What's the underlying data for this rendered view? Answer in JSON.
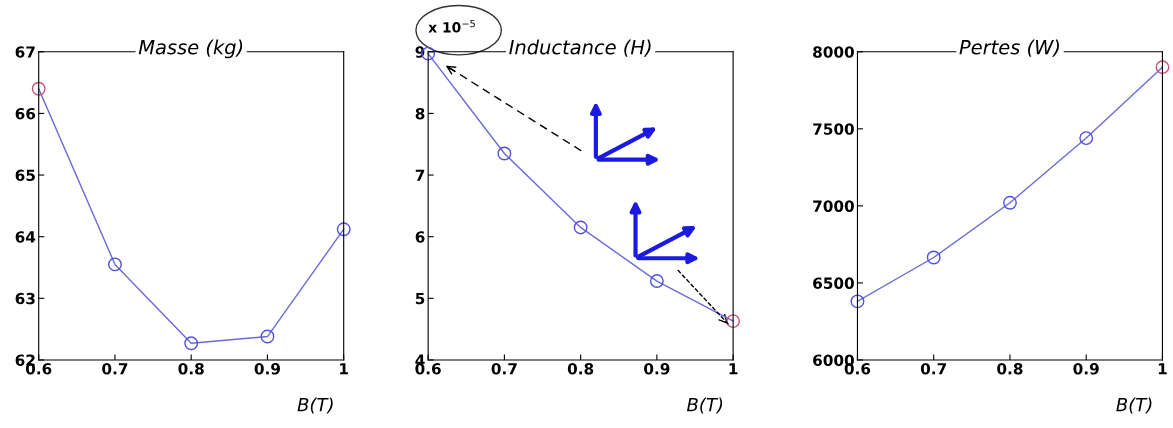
{
  "chart_data": [
    {
      "type": "line",
      "title": "Masse (kg)",
      "xlabel": "B(T)",
      "x": [
        0.6,
        0.7,
        0.8,
        0.9,
        1
      ],
      "marker": "circle",
      "line_style": "solid",
      "grid": false,
      "series": [
        {
          "color": "#6a6ad8",
          "colors": [
            "#d05080",
            "#5050e0",
            "#5050e0",
            "#5050e0",
            "#5050e0"
          ],
          "values": [
            66.4,
            63.55,
            62.27,
            62.38,
            64.12
          ]
        }
      ],
      "xlim": [
        0.6,
        1
      ],
      "xticks": [
        0.6,
        0.7,
        0.8,
        0.9,
        1
      ],
      "ylim": [
        62,
        67
      ],
      "yticks": [
        62,
        63,
        64,
        65,
        66,
        67
      ]
    },
    {
      "type": "line",
      "title": "Inductance (H)",
      "xlabel": "B(T)",
      "x": [
        0.6,
        0.7,
        0.8,
        0.9,
        1
      ],
      "marker": "circle",
      "line_style": "solid",
      "grid": false,
      "series": [
        {
          "color": "#6a6ad8",
          "colors": [
            "#5050e0",
            "#5050e0",
            "#5050e0",
            "#5050e0",
            "#d05080"
          ],
          "values": [
            8.97,
            7.35,
            6.15,
            5.28,
            4.63
          ]
        }
      ],
      "annotations": [
        "x 10$^{−5}$"
      ],
      "xlim": [
        0.6,
        1
      ],
      "xticks": [
        0.6,
        0.7,
        0.8,
        0.9,
        1
      ],
      "ylim": [
        4,
        9
      ],
      "yticks": [
        4,
        5,
        6,
        7,
        8,
        9
      ]
    },
    {
      "type": "line",
      "title": "Pertes (W)",
      "xlabel": "B(T)",
      "x": [
        0.6,
        0.7,
        0.8,
        0.9,
        1
      ],
      "marker": "circle",
      "line_style": "solid",
      "grid": false,
      "series": [
        {
          "color": "#6a6ad8",
          "colors": [
            "#5050e0",
            "#5050e0",
            "#5050e0",
            "#5050e0",
            "#d05080"
          ],
          "values": [
            6380,
            6665,
            7020,
            7440,
            7900
          ]
        }
      ],
      "xlim": [
        0.6,
        1
      ],
      "xticks": [
        0.6,
        0.7,
        0.8,
        0.9,
        1
      ],
      "ylim": [
        6000,
        8000
      ],
      "yticks": [
        6000,
        6500,
        7000,
        7500,
        8000
      ]
    }
  ]
}
